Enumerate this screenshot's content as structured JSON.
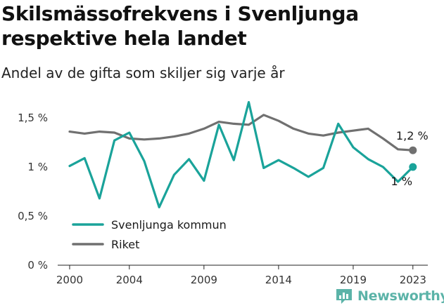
{
  "title": "Skilsmässofrekvens i Svenljunga respektive hela landet",
  "subtitle": "Andel av de gifta som skiljer sig varje år",
  "brand": {
    "name": "Newsworthy",
    "color": "#5bb3a8",
    "icon": "newsworthy-logo-icon"
  },
  "chart_data": {
    "type": "line",
    "x": [
      2000,
      2001,
      2002,
      2003,
      2004,
      2005,
      2006,
      2007,
      2008,
      2009,
      2010,
      2011,
      2012,
      2013,
      2014,
      2015,
      2016,
      2017,
      2018,
      2019,
      2020,
      2021,
      2022,
      2023
    ],
    "x_ticks": [
      2000,
      2004,
      2009,
      2014,
      2019,
      2023
    ],
    "x_tick_labels": [
      "2000",
      "2004",
      "2009",
      "2014",
      "2019",
      "2023"
    ],
    "xlim": [
      1999.2,
      2024
    ],
    "ylim": [
      0,
      1.7
    ],
    "y_ticks": [
      0,
      0.5,
      1,
      1.5
    ],
    "y_tick_labels": [
      "0 %",
      "0,5 %",
      "1 %",
      "1,5 %"
    ],
    "grid": false,
    "legend_position": "bottom-left",
    "series": [
      {
        "name": "Svenljunga kommun",
        "color": "#1aa39a",
        "values": [
          1.01,
          1.09,
          0.68,
          1.27,
          1.35,
          1.06,
          0.59,
          0.92,
          1.08,
          0.86,
          1.43,
          1.07,
          1.66,
          0.99,
          1.07,
          0.99,
          0.9,
          0.99,
          1.44,
          1.2,
          1.08,
          1.0,
          0.85,
          1.0
        ],
        "end_label": "1 %"
      },
      {
        "name": "Riket",
        "color": "#707070",
        "values": [
          1.36,
          1.34,
          1.36,
          1.35,
          1.29,
          1.28,
          1.29,
          1.31,
          1.34,
          1.39,
          1.46,
          1.44,
          1.43,
          1.53,
          1.47,
          1.39,
          1.34,
          1.32,
          1.35,
          1.37,
          1.39,
          1.29,
          1.18,
          1.17
        ],
        "end_label": "1,2 %"
      }
    ]
  }
}
